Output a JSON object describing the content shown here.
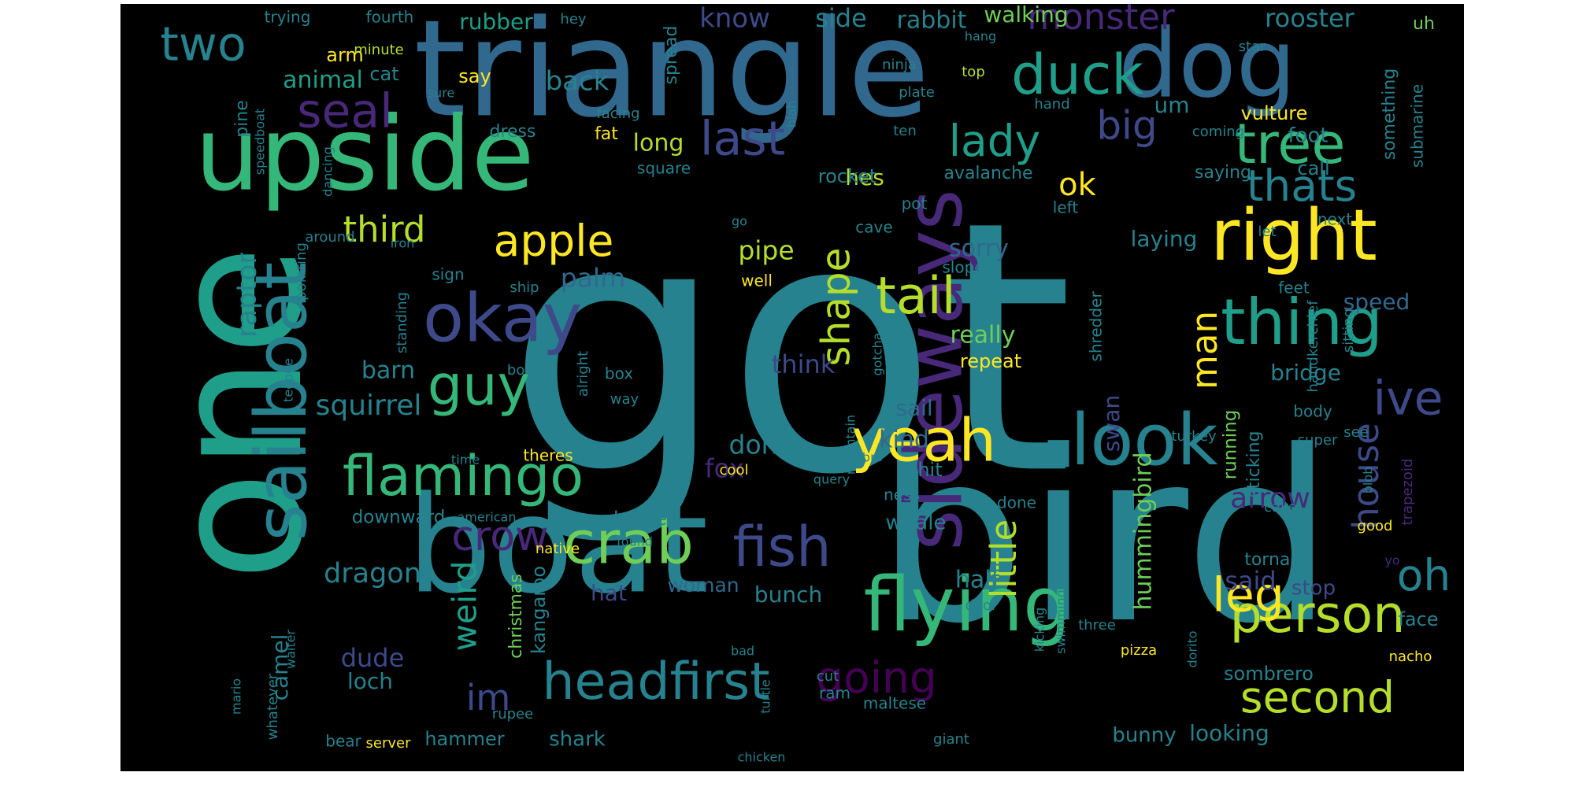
{
  "palette": [
    "#440154",
    "#482878",
    "#3e4989",
    "#31688e",
    "#26828e",
    "#1f9e89",
    "#35b779",
    "#6ece58",
    "#b5de2b",
    "#fde725"
  ],
  "words": [
    {
      "text": "got",
      "color": "#26828e"
    },
    {
      "text": "one",
      "color": "#1f9e89"
    },
    {
      "text": "bird",
      "color": "#26828e"
    },
    {
      "text": "triangle",
      "color": "#31688e"
    },
    {
      "text": "boat",
      "color": "#26828e"
    },
    {
      "text": "upside",
      "color": "#35b779"
    },
    {
      "text": "dog",
      "color": "#31688e"
    },
    {
      "text": "sideways",
      "color": "#482878"
    },
    {
      "text": "sailboat",
      "color": "#26828e"
    },
    {
      "text": "flying",
      "color": "#35b779"
    },
    {
      "text": "right",
      "color": "#fde725"
    },
    {
      "text": "look",
      "color": "#26828e"
    },
    {
      "text": "okay",
      "color": "#3e4989"
    },
    {
      "text": "crab",
      "color": "#6ece58"
    },
    {
      "text": "headfirst",
      "color": "#26828e"
    },
    {
      "text": "person",
      "color": "#b5de2b"
    },
    {
      "text": "thing",
      "color": "#1f9e89"
    },
    {
      "text": "yeah",
      "color": "#fde725"
    },
    {
      "text": "fish",
      "color": "#3e4989"
    },
    {
      "text": "flamingo",
      "color": "#35b779"
    },
    {
      "text": "guy",
      "color": "#35b779"
    },
    {
      "text": "going",
      "color": "#440154"
    },
    {
      "text": "second",
      "color": "#b5de2b"
    },
    {
      "text": "tree",
      "color": "#35b779"
    },
    {
      "text": "thats",
      "color": "#26828e"
    },
    {
      "text": "last",
      "color": "#3e4989"
    },
    {
      "text": "duck",
      "color": "#1f9e89"
    },
    {
      "text": "two",
      "color": "#26828e"
    },
    {
      "text": "seal",
      "color": "#482878"
    },
    {
      "text": "apple",
      "color": "#fde725"
    },
    {
      "text": "tail",
      "color": "#b5de2b"
    },
    {
      "text": "monster",
      "color": "#482878"
    },
    {
      "text": "big",
      "color": "#3e4989"
    },
    {
      "text": "lady",
      "color": "#1f9e89"
    },
    {
      "text": "ive",
      "color": "#3e4989"
    },
    {
      "text": "leg",
      "color": "#fde725"
    },
    {
      "text": "oh",
      "color": "#26828e"
    },
    {
      "text": "crow",
      "color": "#482878"
    },
    {
      "text": "shape",
      "color": "#b5de2b"
    },
    {
      "text": "house",
      "color": "#3e4989"
    },
    {
      "text": "little",
      "color": "#b5de2b"
    },
    {
      "text": "man",
      "color": "#fde725"
    },
    {
      "text": "weird",
      "color": "#1f9e89"
    },
    {
      "text": "ok",
      "color": "#fde725"
    },
    {
      "text": "third",
      "color": "#b5de2b"
    },
    {
      "text": "im",
      "color": "#3e4989"
    },
    {
      "text": "dragon",
      "color": "#26828e"
    },
    {
      "text": "squirrel",
      "color": "#26828e"
    },
    {
      "text": "arrow",
      "color": "#482878"
    },
    {
      "text": "raptor",
      "color": "#26828e"
    },
    {
      "text": "hummingbird",
      "color": "#6ece58"
    },
    {
      "text": "said",
      "color": "#3e4989"
    },
    {
      "text": "pipe",
      "color": "#b5de2b"
    },
    {
      "text": "palm",
      "color": "#31688e"
    },
    {
      "text": "sorry",
      "color": "#31688e"
    },
    {
      "text": "really",
      "color": "#6ece58"
    },
    {
      "text": "dont",
      "color": "#26828e"
    },
    {
      "text": "fox",
      "color": "#482878"
    },
    {
      "text": "know",
      "color": "#3e4989"
    },
    {
      "text": "side",
      "color": "#26828e"
    },
    {
      "text": "back",
      "color": "#26828e"
    },
    {
      "text": "animal",
      "color": "#1f9e89"
    },
    {
      "text": "rooster",
      "color": "#26828e"
    },
    {
      "text": "walking",
      "color": "#6ece58"
    },
    {
      "text": "rabbit",
      "color": "#26828e"
    },
    {
      "text": "rubber",
      "color": "#1f9e89"
    },
    {
      "text": "think",
      "color": "#3e4989"
    },
    {
      "text": "long",
      "color": "#b5de2b"
    },
    {
      "text": "laying",
      "color": "#26828e"
    },
    {
      "text": "speed",
      "color": "#31688e"
    },
    {
      "text": "swan",
      "color": "#3e4989"
    },
    {
      "text": "kind",
      "color": "#31688e"
    },
    {
      "text": "barn",
      "color": "#26828e"
    },
    {
      "text": "sail",
      "color": "#31688e"
    },
    {
      "text": "bridge",
      "color": "#26828e"
    },
    {
      "text": "hes",
      "color": "#b5de2b"
    },
    {
      "text": "dude",
      "color": "#3e4989"
    },
    {
      "text": "half",
      "color": "#26828e"
    },
    {
      "text": "stop",
      "color": "#3e4989"
    },
    {
      "text": "kangaroo",
      "color": "#26828e"
    },
    {
      "text": "bunch",
      "color": "#26828e"
    },
    {
      "text": "woman",
      "color": "#31688e"
    },
    {
      "text": "shark",
      "color": "#26828e"
    },
    {
      "text": "hat",
      "color": "#3e4989"
    },
    {
      "text": "loch",
      "color": "#26828e"
    },
    {
      "text": "camel",
      "color": "#26828e"
    },
    {
      "text": "hammer",
      "color": "#26828e"
    },
    {
      "text": "bunny",
      "color": "#26828e"
    },
    {
      "text": "looking",
      "color": "#26828e"
    },
    {
      "text": "christmas",
      "color": "#6ece58"
    },
    {
      "text": "sombrero",
      "color": "#26828e"
    },
    {
      "text": "face",
      "color": "#26828e"
    },
    {
      "text": "whale",
      "color": "#26828e"
    },
    {
      "text": "home",
      "color": "#26828e"
    },
    {
      "text": "downward",
      "color": "#26828e"
    },
    {
      "text": "repeat",
      "color": "#fde725"
    },
    {
      "text": "tornado",
      "color": "#26828e"
    },
    {
      "text": "hit",
      "color": "#26828e"
    },
    {
      "text": "sticking",
      "color": "#26828e"
    },
    {
      "text": "running",
      "color": "#6ece58"
    },
    {
      "text": "rocket",
      "color": "#26828e"
    },
    {
      "text": "avalanche",
      "color": "#26828e"
    },
    {
      "text": "saying",
      "color": "#26828e"
    },
    {
      "text": "call",
      "color": "#26828e"
    },
    {
      "text": "foot",
      "color": "#26828e"
    },
    {
      "text": "um",
      "color": "#26828e"
    },
    {
      "text": "vulture",
      "color": "#fde725"
    },
    {
      "text": "something",
      "color": "#26828e"
    },
    {
      "text": "uh",
      "color": "#6ece58"
    },
    {
      "text": "submarine",
      "color": "#26828e"
    },
    {
      "text": "arm",
      "color": "#fde725"
    },
    {
      "text": "cat",
      "color": "#26828e"
    },
    {
      "text": "say",
      "color": "#fde725"
    },
    {
      "text": "fat",
      "color": "#fde725"
    },
    {
      "text": "dress",
      "color": "#26828e"
    },
    {
      "text": "pine",
      "color": "#26828e"
    },
    {
      "text": "square",
      "color": "#26828e"
    },
    {
      "text": "spread",
      "color": "#26828e"
    },
    {
      "text": "trying",
      "color": "#26828e"
    },
    {
      "text": "fourth",
      "color": "#26828e"
    },
    {
      "text": "minute",
      "color": "#b5de2b"
    },
    {
      "text": "hey",
      "color": "#26828e"
    },
    {
      "text": "hang",
      "color": "#26828e"
    },
    {
      "text": "star",
      "color": "#26828e"
    },
    {
      "text": "ninja",
      "color": "#26828e"
    },
    {
      "text": "top",
      "color": "#b5de2b"
    },
    {
      "text": "hand",
      "color": "#26828e"
    },
    {
      "text": "plate",
      "color": "#26828e"
    },
    {
      "text": "blah",
      "color": "#26828e"
    },
    {
      "text": "facing",
      "color": "#26828e"
    },
    {
      "text": "sure",
      "color": "#26828e"
    },
    {
      "text": "ten",
      "color": "#26828e"
    },
    {
      "text": "coming",
      "color": "#26828e"
    },
    {
      "text": "pot",
      "color": "#26828e"
    },
    {
      "text": "left",
      "color": "#26828e"
    },
    {
      "text": "let",
      "color": "#26828e"
    },
    {
      "text": "next",
      "color": "#26828e"
    },
    {
      "text": "cave",
      "color": "#26828e"
    },
    {
      "text": "go",
      "color": "#26828e"
    },
    {
      "text": "around",
      "color": "#26828e"
    },
    {
      "text": "iron",
      "color": "#26828e"
    },
    {
      "text": "sign",
      "color": "#26828e"
    },
    {
      "text": "ship",
      "color": "#26828e"
    },
    {
      "text": "well",
      "color": "#fde725"
    },
    {
      "text": "slope",
      "color": "#26828e"
    },
    {
      "text": "shredder",
      "color": "#26828e"
    },
    {
      "text": "handkerchief",
      "color": "#26828e"
    },
    {
      "text": "sitting",
      "color": "#26828e"
    },
    {
      "text": "feet",
      "color": "#26828e"
    },
    {
      "text": "gotcha",
      "color": "#26828e"
    },
    {
      "text": "standing",
      "color": "#26828e"
    },
    {
      "text": "pointing",
      "color": "#26828e"
    },
    {
      "text": "bowl",
      "color": "#26828e"
    },
    {
      "text": "teepee",
      "color": "#26828e"
    },
    {
      "text": "alright",
      "color": "#26828e"
    },
    {
      "text": "box",
      "color": "#26828e"
    },
    {
      "text": "way",
      "color": "#26828e"
    },
    {
      "text": "theres",
      "color": "#fde725"
    },
    {
      "text": "time",
      "color": "#26828e"
    },
    {
      "text": "cool",
      "color": "#fde725"
    },
    {
      "text": "mountain",
      "color": "#26828e"
    },
    {
      "text": "bro",
      "color": "#26828e"
    },
    {
      "text": "query",
      "color": "#26828e"
    },
    {
      "text": "ness",
      "color": "#26828e"
    },
    {
      "text": "done",
      "color": "#26828e"
    },
    {
      "text": "american",
      "color": "#26828e"
    },
    {
      "text": "native",
      "color": "#fde725"
    },
    {
      "text": "found",
      "color": "#26828e"
    },
    {
      "text": "body",
      "color": "#26828e"
    },
    {
      "text": "super",
      "color": "#26828e"
    },
    {
      "text": "see",
      "color": "#26828e"
    },
    {
      "text": "turkey",
      "color": "#26828e"
    },
    {
      "text": "blob",
      "color": "#26828e"
    },
    {
      "text": "trapezoid",
      "color": "#482878"
    },
    {
      "text": "cake",
      "color": "#26828e"
    },
    {
      "text": "good",
      "color": "#fde725"
    },
    {
      "text": "yo",
      "color": "#482878"
    },
    {
      "text": "kicking",
      "color": "#26828e"
    },
    {
      "text": "swimming",
      "color": "#26828e"
    },
    {
      "text": "three",
      "color": "#26828e"
    },
    {
      "text": "pizza",
      "color": "#fde725"
    },
    {
      "text": "dorito",
      "color": "#26828e"
    },
    {
      "text": "nacho",
      "color": "#fde725"
    },
    {
      "text": "door",
      "color": "#26828e"
    },
    {
      "text": "bad",
      "color": "#26828e"
    },
    {
      "text": "cut",
      "color": "#26828e"
    },
    {
      "text": "ram",
      "color": "#26828e"
    },
    {
      "text": "maltese",
      "color": "#26828e"
    },
    {
      "text": "turtle",
      "color": "#26828e"
    },
    {
      "text": "giant",
      "color": "#26828e"
    },
    {
      "text": "chicken",
      "color": "#26828e"
    },
    {
      "text": "rupee",
      "color": "#26828e"
    },
    {
      "text": "bear",
      "color": "#26828e"
    },
    {
      "text": "server",
      "color": "#fde725"
    },
    {
      "text": "whatever",
      "color": "#26828e"
    },
    {
      "text": "mario",
      "color": "#26828e"
    },
    {
      "text": "waiter",
      "color": "#26828e"
    },
    {
      "text": "dancing",
      "color": "#26828e"
    },
    {
      "text": "speedboat",
      "color": "#26828e"
    }
  ]
}
